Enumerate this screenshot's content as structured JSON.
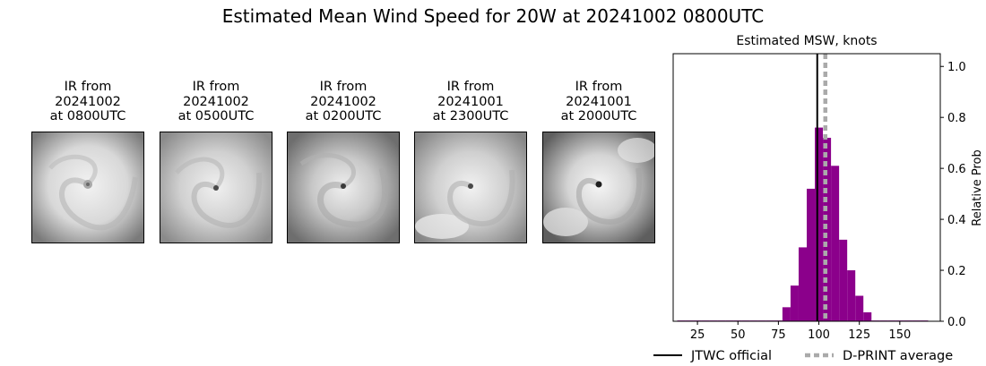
{
  "title": "Estimated Mean Wind Speed for 20W at 20241002 0800UTC",
  "ir_panels": [
    {
      "line1": "IR from",
      "line2": "20241002",
      "line3": "at 0800UTC"
    },
    {
      "line1": "IR from",
      "line2": "20241002",
      "line3": "at 0500UTC"
    },
    {
      "line1": "IR from",
      "line2": "20241002",
      "line3": "at 0200UTC"
    },
    {
      "line1": "IR from",
      "line2": "20241001",
      "line3": "at 2300UTC"
    },
    {
      "line1": "IR from",
      "line2": "20241001",
      "line3": "at 2000UTC"
    }
  ],
  "chart_data": {
    "type": "bar",
    "title": "Estimated MSW, knots",
    "xlabel": "",
    "ylabel": "Relative Prob",
    "xlim": [
      10,
      175
    ],
    "ylim": [
      0,
      1.05
    ],
    "xticks": [
      25,
      50,
      75,
      100,
      125,
      150
    ],
    "yticks": [
      0.0,
      0.2,
      0.4,
      0.6,
      0.8,
      1.0
    ],
    "bar_width": 5,
    "bar_color": "#8b008b",
    "bins": [
      {
        "x": 15,
        "value": 0.003
      },
      {
        "x": 20,
        "value": 0.003
      },
      {
        "x": 25,
        "value": 0.003
      },
      {
        "x": 30,
        "value": 0.003
      },
      {
        "x": 35,
        "value": 0.003
      },
      {
        "x": 40,
        "value": 0.003
      },
      {
        "x": 45,
        "value": 0.003
      },
      {
        "x": 50,
        "value": 0.003
      },
      {
        "x": 55,
        "value": 0.003
      },
      {
        "x": 60,
        "value": 0.003
      },
      {
        "x": 65,
        "value": 0.003
      },
      {
        "x": 70,
        "value": 0.003
      },
      {
        "x": 75,
        "value": 0.003
      },
      {
        "x": 80,
        "value": 0.055
      },
      {
        "x": 85,
        "value": 0.14
      },
      {
        "x": 90,
        "value": 0.29
      },
      {
        "x": 95,
        "value": 0.52
      },
      {
        "x": 100,
        "value": 0.76
      },
      {
        "x": 105,
        "value": 0.72
      },
      {
        "x": 110,
        "value": 0.61
      },
      {
        "x": 115,
        "value": 0.32
      },
      {
        "x": 120,
        "value": 0.2
      },
      {
        "x": 125,
        "value": 0.1
      },
      {
        "x": 130,
        "value": 0.035
      },
      {
        "x": 135,
        "value": 0.003
      },
      {
        "x": 140,
        "value": 0.003
      },
      {
        "x": 145,
        "value": 0.003
      },
      {
        "x": 150,
        "value": 0.003
      },
      {
        "x": 155,
        "value": 0.003
      },
      {
        "x": 160,
        "value": 0.003
      },
      {
        "x": 165,
        "value": 0.003
      }
    ],
    "jtwc_official": 99,
    "dprint_average": 104,
    "jtwc_color": "#000000",
    "dprint_color": "#aaaaaa",
    "legend": [
      {
        "label": "JTWC official",
        "style": "solid",
        "color": "#000000"
      },
      {
        "label": "D-PRINT average",
        "style": "dotted",
        "color": "#aaaaaa"
      }
    ],
    "legend_placement": "bottom"
  }
}
